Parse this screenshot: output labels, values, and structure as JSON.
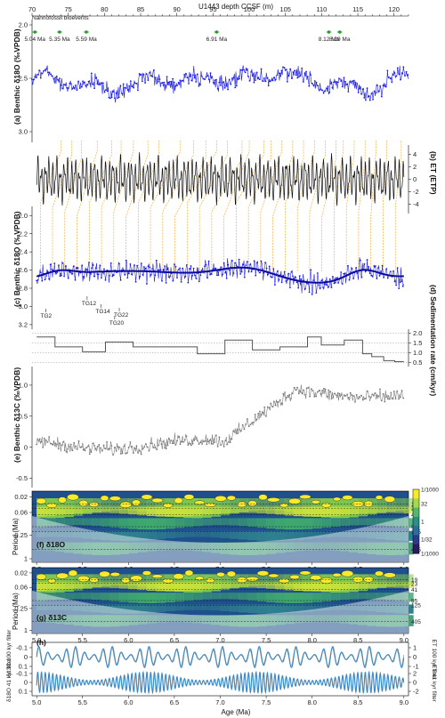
{
  "chart_data": [
    {
      "type": "scatter",
      "panel": "(a)",
      "title": "U1443 depth CCSF (m)",
      "ylabel": "Benthic δ18O (‰VPDB)",
      "xticks": [
        70,
        75,
        80,
        85,
        90,
        95,
        100,
        105,
        110,
        115,
        120
      ],
      "xlim": [
        70,
        122
      ],
      "ylim": [
        3.1,
        1.95
      ],
      "yticks": [
        2.0,
        2.5,
        3.0
      ],
      "series_color": "#1a1ae6",
      "summary": {
        "mean": 2.55,
        "amplitude": 0.25
      }
    },
    {
      "type": "line",
      "panel": "(b)",
      "ylabel": "ET (ETP)",
      "ylim": [
        -5.5,
        5.5
      ],
      "yticks": [
        -4,
        -2,
        0,
        2,
        4
      ],
      "series_color": "#111111",
      "summary": {
        "amplitude": 3
      }
    },
    {
      "type": "scatter",
      "panel": "(c)",
      "ylabel": "Benthic δ18O (‰VPDB)",
      "ylim": [
        3.25,
        1.9
      ],
      "yticks": [
        2.0,
        2.2,
        2.4,
        2.6,
        2.8,
        3.0,
        3.2
      ],
      "series_color": "#1a1ae6",
      "smooth_color": "#0a0a9a",
      "stages": [
        "TG2",
        "TG12",
        "TG14",
        "TG20",
        "TG22"
      ],
      "summary": {
        "mean": 2.65
      }
    },
    {
      "type": "line",
      "panel": "(d)",
      "ylabel": "Sedimentation rate (cm/kyr)",
      "ylim": [
        0.3,
        2.2
      ],
      "yticks": [
        0.5,
        1.0,
        1.5,
        2.0
      ],
      "steps": [
        [
          5.0,
          5.2,
          1.8
        ],
        [
          5.2,
          5.5,
          1.3
        ],
        [
          5.5,
          5.75,
          1.05
        ],
        [
          5.75,
          6.05,
          1.55
        ],
        [
          6.05,
          6.45,
          1.3
        ],
        [
          6.45,
          6.75,
          1.3
        ],
        [
          6.75,
          7.05,
          0.95
        ],
        [
          7.05,
          7.35,
          1.65
        ],
        [
          7.35,
          7.65,
          1.15
        ],
        [
          7.65,
          7.95,
          1.3
        ],
        [
          7.95,
          8.1,
          1.8
        ],
        [
          8.1,
          8.35,
          1.4
        ],
        [
          8.35,
          8.55,
          1.65
        ],
        [
          8.55,
          8.65,
          0.95
        ],
        [
          8.65,
          8.78,
          0.8
        ],
        [
          8.78,
          8.9,
          0.6
        ],
        [
          8.9,
          9.0,
          0.55
        ]
      ]
    },
    {
      "type": "scatter",
      "panel": "(e)",
      "ylabel": "Benthic δ13C (‰VPDB)",
      "ylim": [
        -0.65,
        1.3
      ],
      "yticks": [
        -0.5,
        0,
        0.5,
        1.0
      ],
      "series_color": "#777777"
    },
    {
      "type": "heatmap",
      "panel": "(f) δ18O",
      "ylabel": "Period (Ma)",
      "yticks": [
        "0.02",
        "0.06",
        "0.25",
        "1"
      ],
      "right_periods": [
        "19",
        "23",
        "41",
        "95",
        "125",
        "405"
      ],
      "colorbar": [
        "1/1000",
        "32",
        "1",
        "1/32",
        "1/1000"
      ]
    },
    {
      "type": "heatmap",
      "panel": "(g) δ13C",
      "ylabel": "Period (Ma)",
      "yticks": [
        "0.02",
        "0.06",
        "0.25",
        "1"
      ],
      "right_periods": [
        "19",
        "23",
        "41",
        "95",
        "125",
        "405"
      ]
    },
    {
      "type": "line",
      "panel": "(h)",
      "xlabel": "Age (Ma)",
      "xticks": [
        5.0,
        5.5,
        6.0,
        6.5,
        7.0,
        7.5,
        8.0,
        8.5,
        9.0
      ],
      "xlim": [
        4.95,
        9.05
      ],
      "upper": {
        "ylabel_left": "δ13C 100 kyr filter",
        "ylabel_right": "ET 100 kyr filter",
        "yticks_left": [
          "-0.1",
          "0",
          "0.1"
        ],
        "yticks_right": [
          "1",
          "0",
          "-1"
        ]
      },
      "lower": {
        "ylabel_left": "δ18O 41 kyr filter",
        "ylabel_right": "ET 41 kyr filter",
        "yticks_left": [
          "-0.1",
          "0",
          "0.1"
        ],
        "yticks_right": [
          "2",
          "0",
          "-2"
        ]
      }
    }
  ],
  "bioevents": {
    "label": "Nannofossil bioevents",
    "items": [
      {
        "depth": 70.4,
        "age_label": "5.04 Ma"
      },
      {
        "depth": 73.8,
        "age_label": "5.35 Ma"
      },
      {
        "depth": 77.5,
        "age_label": "5.59 Ma"
      },
      {
        "depth": 95.5,
        "age_label": "6.91 Ma"
      },
      {
        "depth": 111.0,
        "age_label": "8.12 Ma"
      },
      {
        "depth": 112.5,
        "age_label": "8.29 Ma"
      }
    ]
  },
  "labels": {
    "top_axis": "U1443 depth CCSF (m)",
    "a": "(a) Benthic δ18O (‰VPDB)",
    "b": "(b) ET (ETP)",
    "c": "(c) Benthic δ18O (‰VPDB)",
    "d": "(d) Sedimentation rate (cm/kyr)",
    "e": "(e) Benthic δ13C (‰VPDB)",
    "f": "(f) δ18O",
    "g": "(g) δ13C",
    "h": "(h)",
    "period": "Period (Ma)",
    "xlabel": "Age (Ma)"
  }
}
